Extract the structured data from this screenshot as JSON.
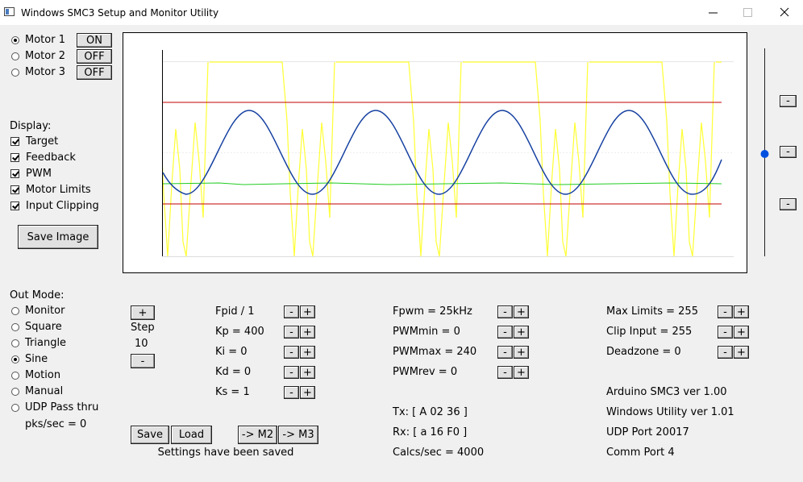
{
  "window": {
    "title": "Windows SMC3 Setup and Monitor Utility"
  },
  "motors": [
    {
      "label": "Motor 1",
      "button": "ON",
      "selected": true
    },
    {
      "label": "Motor 2",
      "button": "OFF",
      "selected": false
    },
    {
      "label": "Motor 3",
      "button": "OFF",
      "selected": false
    }
  ],
  "display": {
    "label": "Display:",
    "options": [
      {
        "label": "Target",
        "checked": true
      },
      {
        "label": "Feedback",
        "checked": true
      },
      {
        "label": "PWM",
        "checked": true
      },
      {
        "label": "Motor Limits",
        "checked": true
      },
      {
        "label": "Input Clipping",
        "checked": true
      }
    ]
  },
  "save_image": "Save Image",
  "out_mode": {
    "label": "Out Mode:",
    "options": [
      {
        "label": "Monitor",
        "selected": false
      },
      {
        "label": "Square",
        "selected": false
      },
      {
        "label": "Triangle",
        "selected": false
      },
      {
        "label": "Sine",
        "selected": true
      },
      {
        "label": "Motion",
        "selected": false
      },
      {
        "label": "Manual",
        "selected": false
      },
      {
        "label": "UDP Pass thru",
        "selected": false
      }
    ]
  },
  "pks_sec": "pks/sec = 0",
  "step": {
    "plus": "+",
    "label": "Step",
    "value": "10",
    "minus": "-"
  },
  "spinner": {
    "minus": "-",
    "plus": "+"
  },
  "params": [
    [
      "Fpid / 1",
      "Kp = 400",
      "Ki = 0",
      "Kd = 0",
      "Ks = 1"
    ],
    [
      "Fpwm = 25kHz",
      "PWMmin = 0",
      "PWMmax = 240",
      "PWMrev = 0"
    ],
    [
      "Max Limits = 255",
      "Clip Input = 255",
      "Deadzone = 0"
    ]
  ],
  "status": [
    "Tx: [ A 02 36 ]",
    "Rx: [ a 16 F0 ]",
    "Calcs/sec = 4000"
  ],
  "info": [
    "Arduino SMC3 ver 1.00",
    "Windows Utility ver 1.01",
    "UDP Port 20017",
    "Comm Port 4"
  ],
  "buttons": [
    "Save",
    "Load",
    "-> M2",
    "-> M3"
  ],
  "settings_message": "Settings have been saved"
}
